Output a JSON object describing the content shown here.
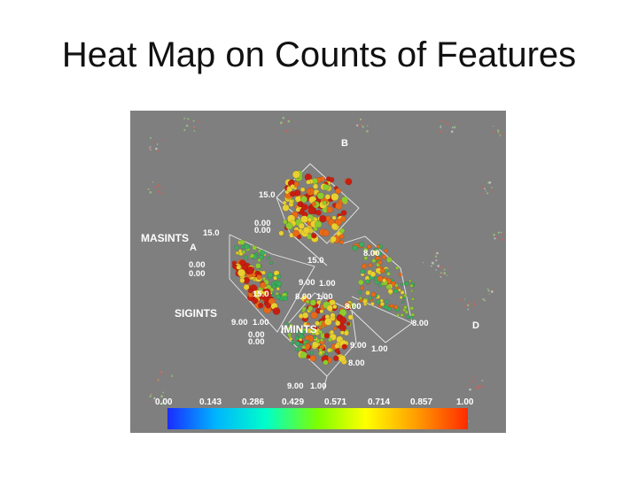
{
  "slide": {
    "title": "Heat Map on Counts of Features"
  },
  "figure": {
    "axis_labels": {
      "b": "B",
      "masints": "MASINTS",
      "a": "A",
      "sigints": "SIGINTS",
      "imints": "IMINTS",
      "d": "D"
    },
    "tick_labels": [
      "15.0",
      "0.00",
      "0.00",
      "15.0",
      "0.00",
      "0.00",
      "15.0",
      "8.00",
      "9.00",
      "1.00",
      "15.0",
      "8.00",
      "1.00",
      "8.00",
      "9.00",
      "1.00",
      "0.00",
      "0.00",
      "9.00",
      "1.00",
      "8.00",
      "8.00",
      "9.00",
      "1.00"
    ],
    "color_scale": {
      "ticks": [
        "0.00",
        "0.143",
        "0.286",
        "0.429",
        "0.571",
        "0.714",
        "0.857",
        "1.00"
      ],
      "gradient": [
        "#1a2cff",
        "#00b4ff",
        "#00ffc8",
        "#7dff00",
        "#ffff00",
        "#ff9c00",
        "#ff2a00"
      ]
    },
    "glyph_colors": {
      "high": "#c81e10",
      "mid_high": "#e86a18",
      "mid": "#e8d030",
      "mid_low": "#8ccc30",
      "low": "#38b060"
    }
  }
}
